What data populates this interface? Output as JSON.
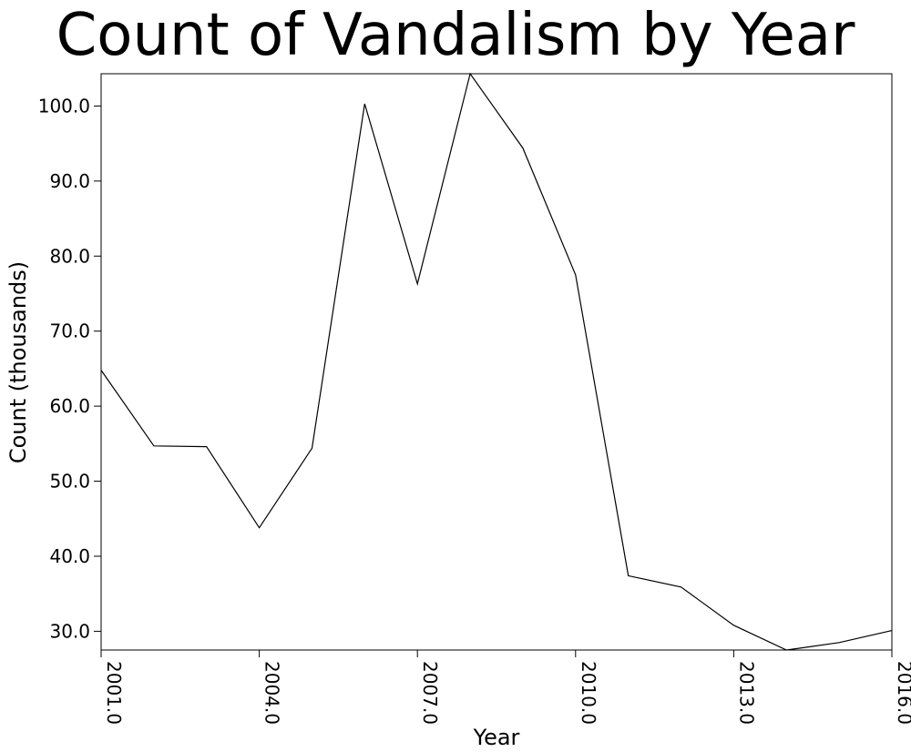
{
  "chart_data": {
    "type": "line",
    "title": "Count of Vandalism by Year",
    "xlabel": "Year",
    "ylabel": "Count (thousands)",
    "xlim": [
      2001,
      2016
    ],
    "ylim": [
      27.5,
      104.3
    ],
    "grid": false,
    "legend": "none",
    "x_ticks": [
      "2001.0",
      "2004.0",
      "2007.0",
      "2010.0",
      "2013.0",
      "2016.0"
    ],
    "y_ticks": [
      "30.0",
      "40.0",
      "50.0",
      "60.0",
      "70.0",
      "80.0",
      "90.0",
      "100.0"
    ],
    "series": [
      {
        "x": [
          2001,
          2002,
          2003,
          2004,
          2005,
          2006,
          2007,
          2008,
          2009,
          2010,
          2011,
          2012,
          2013,
          2014,
          2015,
          2016
        ],
        "values": [
          64.8,
          54.7,
          54.6,
          43.8,
          54.4,
          100.3,
          76.3,
          104.3,
          94.4,
          77.5,
          37.4,
          35.9,
          30.8,
          27.5,
          28.5,
          30.1
        ],
        "color": "#000000"
      }
    ]
  }
}
